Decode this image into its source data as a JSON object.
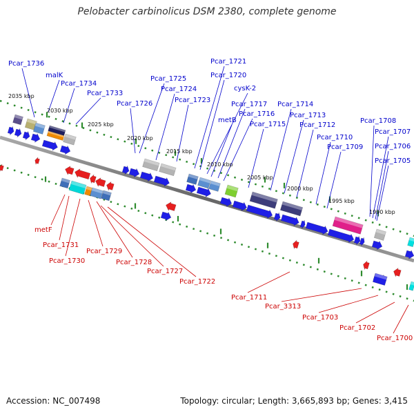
{
  "title": "Pelobacter carbinolicus DSM 2380, complete genome",
  "footer": {
    "accession_label": "Accession:",
    "accession": "NC_007498",
    "topology_label": "Topology:",
    "topology": "circular",
    "length_label": "Length:",
    "length": "3,665,893 bp",
    "genes_label": "Genes:",
    "genes": "3,415"
  },
  "colors": {
    "forward_label": "#0000cc",
    "reverse_label": "#cc0000",
    "backbone": "#808080",
    "tick_dots": "#2e8b2e",
    "forward_gene": "#1f1fe6",
    "reverse_gene": "#e61f1f"
  },
  "scale_ticks": [
    "2035 kbp",
    "2030 kbp",
    "2025 kbp",
    "2020 kbp",
    "2015 kbp",
    "2010 kbp",
    "2005 kbp",
    "2000 kbp",
    "1995 kbp",
    "1990 kbp"
  ],
  "forward_labels": [
    "Pcar_1736",
    "malK",
    "Pcar_1734",
    "Pcar_1733",
    "Pcar_1726",
    "Pcar_1725",
    "Pcar_1724",
    "Pcar_1723",
    "Pcar_1721",
    "Pcar_1720",
    "cysK-2",
    "metB",
    "Pcar_1717",
    "Pcar_1716",
    "Pcar_1715",
    "Pcar_1714",
    "Pcar_1713",
    "Pcar_1712",
    "Pcar_1710",
    "Pcar_1709",
    "Pcar_1708",
    "Pcar_1707",
    "Pcar_1706",
    "Pcar_1705"
  ],
  "reverse_labels": [
    "metF",
    "Pcar_1731",
    "Pcar_1730",
    "Pcar_1729",
    "Pcar_1728",
    "Pcar_1727",
    "Pcar_1722",
    "Pcar_1711",
    "Pcar_3313",
    "Pcar_1703",
    "Pcar_1702",
    "Pcar_1700"
  ]
}
